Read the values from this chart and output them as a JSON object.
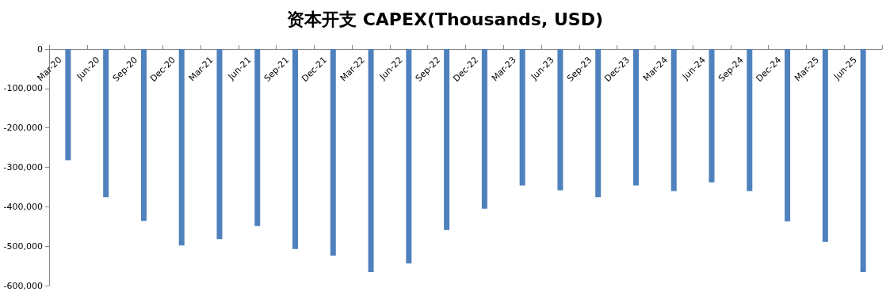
{
  "chart_data": {
    "type": "bar",
    "title": "资本开支 CAPEX(Thousands, USD)",
    "categories": [
      "Mar-20",
      "Jun-20",
      "Sep-20",
      "Dec-20",
      "Mar-21",
      "Jun-21",
      "Sep-21",
      "Dec-21",
      "Mar-22",
      "Jun-22",
      "Sep-22",
      "Dec-22",
      "Mar-23",
      "Jun-23",
      "Sep-23",
      "Dec-23",
      "Mar-24",
      "Jun-24",
      "Sep-24",
      "Dec-24",
      "Mar-25",
      "Jun-25"
    ],
    "values": [
      -282000,
      -376000,
      -436000,
      -498000,
      -482000,
      -449000,
      -507000,
      -524000,
      -566000,
      -544000,
      -459000,
      -405000,
      -346000,
      -358000,
      -376000,
      -346000,
      -360000,
      -338000,
      -360000,
      -437000,
      -489000,
      -566000
    ],
    "color": "#4f81bd",
    "ylim": [
      -600000,
      0
    ],
    "yticks": [
      {
        "value": -600000,
        "label": "-600,000"
      },
      {
        "value": -500000,
        "label": "-500,000"
      },
      {
        "value": -400000,
        "label": "-400,000"
      },
      {
        "value": -300000,
        "label": "-300,000"
      },
      {
        "value": -200000,
        "label": "-200,000"
      },
      {
        "value": -100000,
        "label": "-100,000"
      },
      0
    ],
    "grid": false
  }
}
